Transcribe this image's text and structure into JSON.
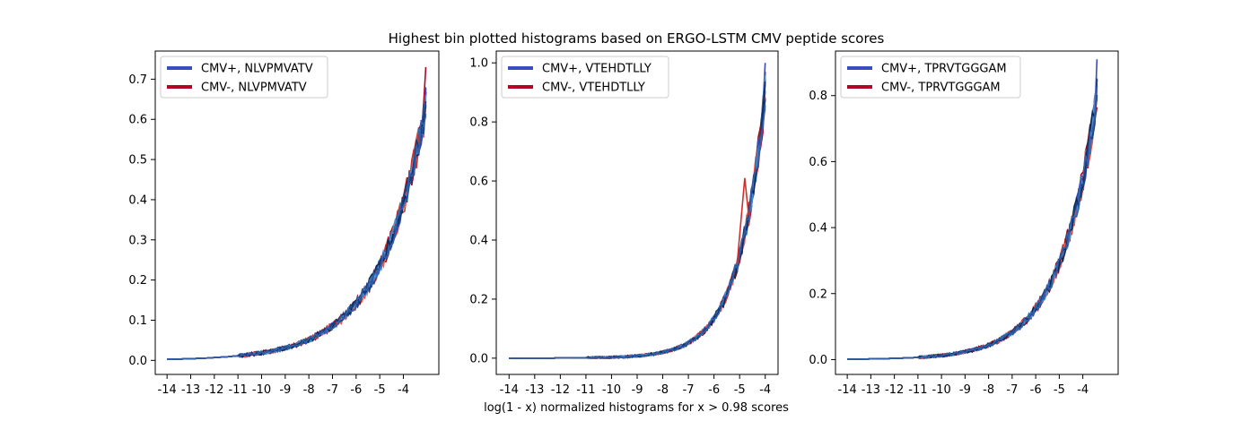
{
  "figure": {
    "title": "Highest bin plotted histograms based on ERGO-LSTM CMV peptide scores",
    "xlabel": "log(1 - x) normalized histograms for x > 0.98 scores"
  },
  "colors": {
    "blues": [
      "#3b4cc0",
      "#1f4e99",
      "#2b6cb0",
      "#4a8bd0",
      "#0b2a5c",
      "#1c3f7a",
      "#335fa8"
    ],
    "reds": [
      "#b40426",
      "#d0302f",
      "#a50f15",
      "#e0483a",
      "#8b0a1e",
      "#c7362b",
      "#f05a4a"
    ],
    "legend_pos": "#3b4cc0",
    "legend_neg": "#b40426"
  },
  "chart_data": [
    {
      "type": "line",
      "x_ticks": [
        "-14",
        "-13",
        "-12",
        "-11",
        "-10",
        "-9",
        "-8",
        "-7",
        "-6",
        "-5",
        "-4"
      ],
      "y_ticks": [
        "0.0",
        "0.1",
        "0.2",
        "0.3",
        "0.4",
        "0.5",
        "0.6",
        "0.7"
      ],
      "xlim": [
        -14.5,
        -2.5
      ],
      "ylim": [
        -0.035,
        0.77
      ],
      "xmax_data": -3.05,
      "legend": [
        {
          "label": "CMV+, NLVPMVATV",
          "group": "pos"
        },
        {
          "label": "CMV-, NLVPMVATV",
          "group": "neg"
        }
      ],
      "legend_position": "upper-left",
      "curve": {
        "k": 0.505,
        "end_y": 0.63
      },
      "max_red": 0.73,
      "max_blue": 0.68
    },
    {
      "type": "line",
      "x_ticks": [
        "-14",
        "-13",
        "-12",
        "-11",
        "-10",
        "-9",
        "-8",
        "-7",
        "-6",
        "-5",
        "-4"
      ],
      "y_ticks": [
        "0.0",
        "0.2",
        "0.4",
        "0.6",
        "0.8",
        "1.0"
      ],
      "xlim": [
        -14.5,
        -3.5
      ],
      "ylim": [
        -0.055,
        1.04
      ],
      "xmax_data": -4.0,
      "legend": [
        {
          "label": "CMV+, VTEHDTLLY",
          "group": "pos"
        },
        {
          "label": "CMV-, VTEHDTLLY",
          "group": "neg"
        }
      ],
      "legend_position": "upper-left",
      "curve": {
        "k": 0.95,
        "end_y": 0.9
      },
      "max_red": 0.97,
      "max_blue": 1.0,
      "spike": {
        "x": -4.8,
        "y": 0.61
      }
    },
    {
      "type": "line",
      "x_ticks": [
        "-14",
        "-13",
        "-12",
        "-11",
        "-10",
        "-9",
        "-8",
        "-7",
        "-6",
        "-5",
        "-4"
      ],
      "y_ticks": [
        "0.0",
        "0.2",
        "0.4",
        "0.6",
        "0.8"
      ],
      "xlim": [
        -14.5,
        -2.5
      ],
      "ylim": [
        -0.045,
        0.935
      ],
      "xmax_data": -3.4,
      "legend": [
        {
          "label": "CMV+, TPRVTGGGAM",
          "group": "pos"
        },
        {
          "label": "CMV-, TPRVTGGGAM",
          "group": "neg"
        }
      ],
      "legend_position": "upper-left",
      "curve": {
        "k": 0.63,
        "end_y": 0.8
      },
      "max_red": 0.83,
      "max_blue": 0.91
    }
  ]
}
